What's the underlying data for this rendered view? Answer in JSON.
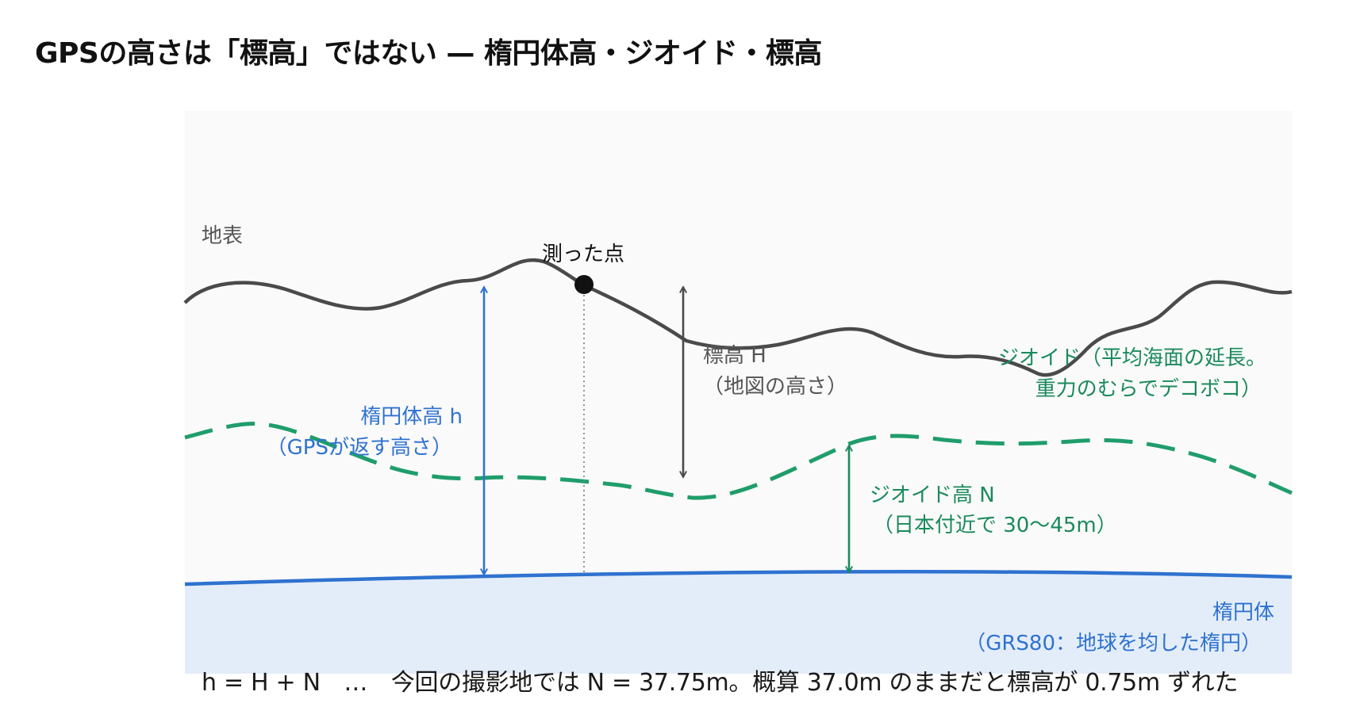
{
  "title": "GPSの高さは「標高」ではない — 楕円体高・ジオイド・標高",
  "labels": {
    "surface": "地表",
    "measured_point": "測った点",
    "orthometric_height": "標高 H",
    "orthometric_height_note": "（地図の高さ）",
    "ellipsoidal_height": "楕円体高 h",
    "ellipsoidal_height_note": "（GPSが返す高さ）",
    "geoid": "ジオイド（平均海面の延長。",
    "geoid_note": "重力のむらでデコボコ）",
    "geoid_height": "ジオイド高 N",
    "geoid_height_note": "（日本付近で 30〜45m）",
    "ellipsoid": "楕円体",
    "ellipsoid_note": "（GRS80：地球を均した楕円）"
  },
  "formula": "h = H + N　…　今回の撮影地では N = 37.75m。概算 37.0m のままだと標高が 0.75m ずれた",
  "colors": {
    "terrain": "#4a4a4a",
    "geoid": "#1f9d6b",
    "ellipsoid": "#2f72d0",
    "ellipsoid_fill": "#e3edf9",
    "panel": "#fafafa",
    "geoid_label": "#1a8a5c",
    "ellipsoid_label": "#2f72d0",
    "orthometric_label": "#555555"
  }
}
